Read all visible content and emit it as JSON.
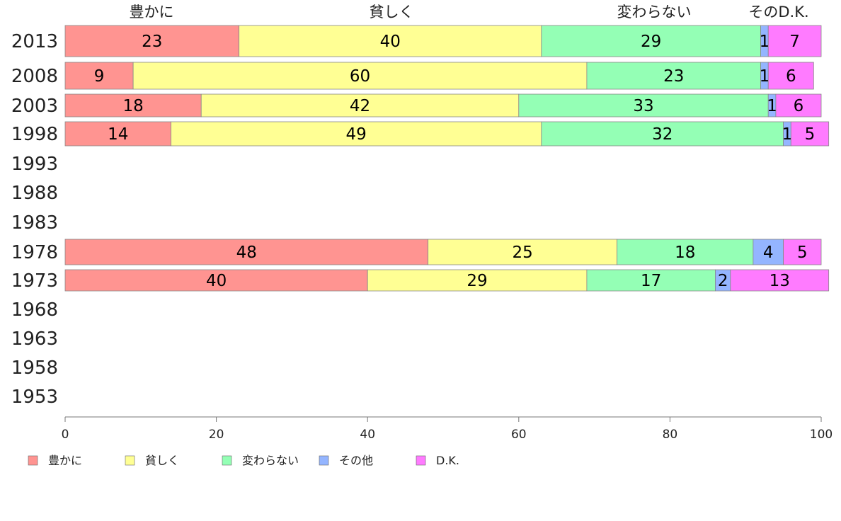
{
  "chart_data": {
    "type": "bar",
    "orientation": "horizontal",
    "stacked": true,
    "categories": [
      "2013",
      "2008",
      "2003",
      "1998",
      "1993",
      "1988",
      "1983",
      "1978",
      "1973",
      "1968",
      "1963",
      "1958",
      "1953"
    ],
    "series": [
      {
        "name": "豊かに",
        "color": "#ff9491",
        "values": [
          23,
          9,
          18,
          14,
          null,
          null,
          null,
          48,
          40,
          null,
          null,
          null,
          null
        ]
      },
      {
        "name": "貧しく",
        "color": "#ffff94",
        "values": [
          40,
          60,
          42,
          49,
          null,
          null,
          null,
          25,
          29,
          null,
          null,
          null,
          null
        ]
      },
      {
        "name": "変わらない",
        "color": "#94ffb5",
        "values": [
          29,
          23,
          33,
          32,
          null,
          null,
          null,
          18,
          17,
          null,
          null,
          null,
          null
        ]
      },
      {
        "name": "その他",
        "color": "#94b5ff",
        "values": [
          1,
          1,
          1,
          1,
          null,
          null,
          null,
          4,
          2,
          null,
          null,
          null,
          null
        ]
      },
      {
        "name": "D.K.",
        "color": "#ff7bff",
        "values": [
          7,
          6,
          6,
          5,
          null,
          null,
          null,
          5,
          13,
          null,
          null,
          null,
          null
        ]
      }
    ],
    "top_labels": [
      "豊かに",
      "貧しく",
      "変わらない",
      "そのD.K."
    ],
    "xlim": [
      0,
      100
    ],
    "xticks": [
      0,
      20,
      40,
      60,
      80,
      100
    ],
    "legend_position": "bottom",
    "grid": false
  }
}
